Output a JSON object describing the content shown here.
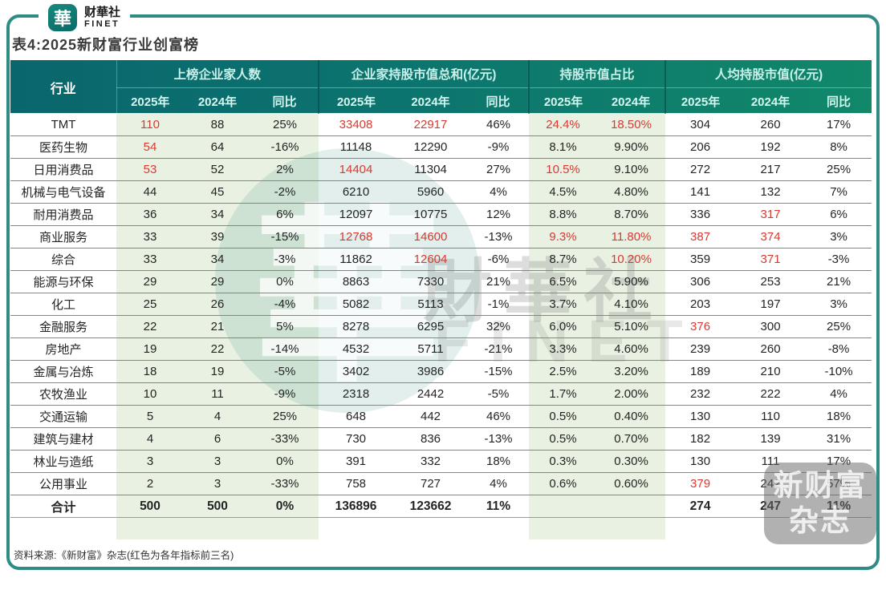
{
  "brand": {
    "logo_char": "華",
    "name_cn": "财華社",
    "name_en": "FINET"
  },
  "title": "表4:2025新财富行业创富榜",
  "chart_data": {
    "type": "table",
    "title": "表4:2025新财富行业创富榜",
    "industry_header": "行业",
    "groups": [
      {
        "label": "上榜企业家人数",
        "cols": [
          "2025年",
          "2024年",
          "同比"
        ]
      },
      {
        "label": "企业家持股市值总和(亿元)",
        "cols": [
          "2025年",
          "2024年",
          "同比"
        ]
      },
      {
        "label": "持股市值占比",
        "cols": [
          "2025年",
          "2024年"
        ]
      },
      {
        "label": "人均持股市值(亿元)",
        "cols": [
          "2025年",
          "2024年",
          "同比"
        ]
      }
    ],
    "red_note": "红色为各年指标前三名",
    "rows": [
      {
        "industry": "TMT",
        "cells": [
          {
            "v": "110",
            "red": true
          },
          {
            "v": "88"
          },
          {
            "v": "25%"
          },
          {
            "v": "33408",
            "red": true
          },
          {
            "v": "22917",
            "red": true
          },
          {
            "v": "46%"
          },
          {
            "v": "24.4%",
            "red": true
          },
          {
            "v": "18.50%",
            "red": true
          },
          {
            "v": "304"
          },
          {
            "v": "260"
          },
          {
            "v": "17%"
          }
        ]
      },
      {
        "industry": "医药生物",
        "cells": [
          {
            "v": "54",
            "red": true
          },
          {
            "v": "64"
          },
          {
            "v": "-16%"
          },
          {
            "v": "11148"
          },
          {
            "v": "12290"
          },
          {
            "v": "-9%"
          },
          {
            "v": "8.1%"
          },
          {
            "v": "9.90%"
          },
          {
            "v": "206"
          },
          {
            "v": "192"
          },
          {
            "v": "8%"
          }
        ]
      },
      {
        "industry": "日用消费品",
        "cells": [
          {
            "v": "53",
            "red": true
          },
          {
            "v": "52"
          },
          {
            "v": "2%"
          },
          {
            "v": "14404",
            "red": true
          },
          {
            "v": "11304"
          },
          {
            "v": "27%"
          },
          {
            "v": "10.5%",
            "red": true
          },
          {
            "v": "9.10%"
          },
          {
            "v": "272"
          },
          {
            "v": "217"
          },
          {
            "v": "25%"
          }
        ]
      },
      {
        "industry": "机械与电气设备",
        "cells": [
          {
            "v": "44"
          },
          {
            "v": "45"
          },
          {
            "v": "-2%"
          },
          {
            "v": "6210"
          },
          {
            "v": "5960"
          },
          {
            "v": "4%"
          },
          {
            "v": "4.5%"
          },
          {
            "v": "4.80%"
          },
          {
            "v": "141"
          },
          {
            "v": "132"
          },
          {
            "v": "7%"
          }
        ]
      },
      {
        "industry": "耐用消费品",
        "cells": [
          {
            "v": "36"
          },
          {
            "v": "34"
          },
          {
            "v": "6%"
          },
          {
            "v": "12097"
          },
          {
            "v": "10775"
          },
          {
            "v": "12%"
          },
          {
            "v": "8.8%"
          },
          {
            "v": "8.70%"
          },
          {
            "v": "336"
          },
          {
            "v": "317",
            "red": true
          },
          {
            "v": "6%"
          }
        ]
      },
      {
        "industry": "商业服务",
        "cells": [
          {
            "v": "33"
          },
          {
            "v": "39"
          },
          {
            "v": "-15%"
          },
          {
            "v": "12768",
            "red": true
          },
          {
            "v": "14600",
            "red": true
          },
          {
            "v": "-13%"
          },
          {
            "v": "9.3%",
            "red": true
          },
          {
            "v": "11.80%",
            "red": true
          },
          {
            "v": "387",
            "red": true
          },
          {
            "v": "374",
            "red": true
          },
          {
            "v": "3%"
          }
        ]
      },
      {
        "industry": "综合",
        "cells": [
          {
            "v": "33"
          },
          {
            "v": "34"
          },
          {
            "v": "-3%"
          },
          {
            "v": "11862"
          },
          {
            "v": "12604",
            "red": true
          },
          {
            "v": "-6%"
          },
          {
            "v": "8.7%"
          },
          {
            "v": "10.20%",
            "red": true
          },
          {
            "v": "359"
          },
          {
            "v": "371",
            "red": true
          },
          {
            "v": "-3%"
          }
        ]
      },
      {
        "industry": "能源与环保",
        "cells": [
          {
            "v": "29"
          },
          {
            "v": "29"
          },
          {
            "v": "0%"
          },
          {
            "v": "8863"
          },
          {
            "v": "7330"
          },
          {
            "v": "21%"
          },
          {
            "v": "6.5%"
          },
          {
            "v": "5.90%"
          },
          {
            "v": "306"
          },
          {
            "v": "253"
          },
          {
            "v": "21%"
          }
        ]
      },
      {
        "industry": "化工",
        "cells": [
          {
            "v": "25"
          },
          {
            "v": "26"
          },
          {
            "v": "-4%"
          },
          {
            "v": "5082"
          },
          {
            "v": "5113"
          },
          {
            "v": "-1%"
          },
          {
            "v": "3.7%"
          },
          {
            "v": "4.10%"
          },
          {
            "v": "203"
          },
          {
            "v": "197"
          },
          {
            "v": "3%"
          }
        ]
      },
      {
        "industry": "金融服务",
        "cells": [
          {
            "v": "22"
          },
          {
            "v": "21"
          },
          {
            "v": "5%"
          },
          {
            "v": "8278"
          },
          {
            "v": "6295"
          },
          {
            "v": "32%"
          },
          {
            "v": "6.0%"
          },
          {
            "v": "5.10%"
          },
          {
            "v": "376",
            "red": true
          },
          {
            "v": "300"
          },
          {
            "v": "25%"
          }
        ]
      },
      {
        "industry": "房地产",
        "cells": [
          {
            "v": "19"
          },
          {
            "v": "22"
          },
          {
            "v": "-14%"
          },
          {
            "v": "4532"
          },
          {
            "v": "5711"
          },
          {
            "v": "-21%"
          },
          {
            "v": "3.3%"
          },
          {
            "v": "4.60%"
          },
          {
            "v": "239"
          },
          {
            "v": "260"
          },
          {
            "v": "-8%"
          }
        ]
      },
      {
        "industry": "金属与冶炼",
        "cells": [
          {
            "v": "18"
          },
          {
            "v": "19"
          },
          {
            "v": "-5%"
          },
          {
            "v": "3402"
          },
          {
            "v": "3986"
          },
          {
            "v": "-15%"
          },
          {
            "v": "2.5%"
          },
          {
            "v": "3.20%"
          },
          {
            "v": "189"
          },
          {
            "v": "210"
          },
          {
            "v": "-10%"
          }
        ]
      },
      {
        "industry": "农牧渔业",
        "cells": [
          {
            "v": "10"
          },
          {
            "v": "11"
          },
          {
            "v": "-9%"
          },
          {
            "v": "2318"
          },
          {
            "v": "2442"
          },
          {
            "v": "-5%"
          },
          {
            "v": "1.7%"
          },
          {
            "v": "2.00%"
          },
          {
            "v": "232"
          },
          {
            "v": "222"
          },
          {
            "v": "4%"
          }
        ]
      },
      {
        "industry": "交通运输",
        "cells": [
          {
            "v": "5"
          },
          {
            "v": "4"
          },
          {
            "v": "25%"
          },
          {
            "v": "648"
          },
          {
            "v": "442"
          },
          {
            "v": "46%"
          },
          {
            "v": "0.5%"
          },
          {
            "v": "0.40%"
          },
          {
            "v": "130"
          },
          {
            "v": "110"
          },
          {
            "v": "18%"
          }
        ]
      },
      {
        "industry": "建筑与建材",
        "cells": [
          {
            "v": "4"
          },
          {
            "v": "6"
          },
          {
            "v": "-33%"
          },
          {
            "v": "730"
          },
          {
            "v": "836"
          },
          {
            "v": "-13%"
          },
          {
            "v": "0.5%"
          },
          {
            "v": "0.70%"
          },
          {
            "v": "182"
          },
          {
            "v": "139"
          },
          {
            "v": "31%"
          }
        ]
      },
      {
        "industry": "林业与造纸",
        "cells": [
          {
            "v": "3"
          },
          {
            "v": "3"
          },
          {
            "v": "0%"
          },
          {
            "v": "391"
          },
          {
            "v": "332"
          },
          {
            "v": "18%"
          },
          {
            "v": "0.3%"
          },
          {
            "v": "0.30%"
          },
          {
            "v": "130"
          },
          {
            "v": "111"
          },
          {
            "v": "17%"
          }
        ]
      },
      {
        "industry": "公用事业",
        "cells": [
          {
            "v": "2"
          },
          {
            "v": "3"
          },
          {
            "v": "-33%"
          },
          {
            "v": "758"
          },
          {
            "v": "727"
          },
          {
            "v": "4%"
          },
          {
            "v": "0.6%"
          },
          {
            "v": "0.60%"
          },
          {
            "v": "379",
            "red": true
          },
          {
            "v": "242"
          },
          {
            "v": "57%"
          }
        ]
      }
    ],
    "total_row": {
      "industry": "合计",
      "cells": [
        {
          "v": "500"
        },
        {
          "v": "500"
        },
        {
          "v": "0%"
        },
        {
          "v": "136896"
        },
        {
          "v": "123662"
        },
        {
          "v": "11%"
        },
        {
          "v": ""
        },
        {
          "v": ""
        },
        {
          "v": "274"
        },
        {
          "v": "247"
        },
        {
          "v": "11%"
        }
      ]
    }
  },
  "watermarks": {
    "center_logo_char": "華",
    "center_line1": "財華社",
    "center_line2": "FINET",
    "badge_line1": "新财富",
    "badge_line2": "杂志"
  },
  "footer": {
    "source": "资料来源:《新财富》杂志(红色为各年指标前三名)"
  },
  "colors": {
    "frame_teal": "#2f8c84",
    "header_teal_left": "#0a666d",
    "header_teal_right": "#11886a",
    "band_green": "#e8f1e2",
    "highlight_red": "#d83a31"
  }
}
